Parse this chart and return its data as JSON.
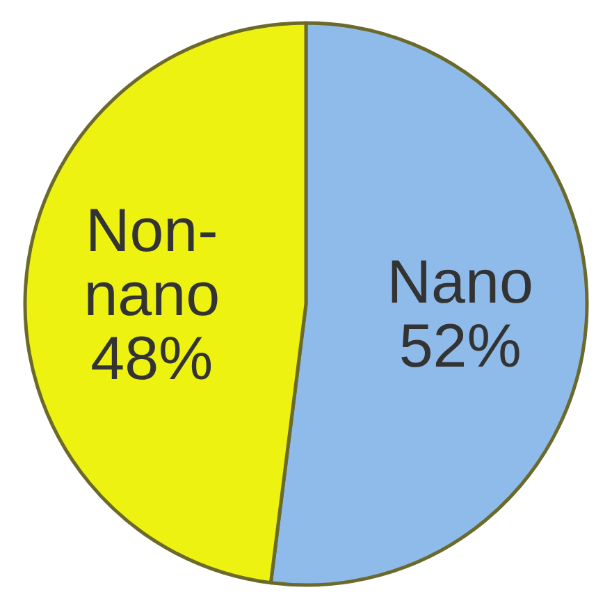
{
  "chart_data": {
    "type": "pie",
    "categories": [
      "Nano",
      "Non-nano"
    ],
    "values": [
      52,
      48
    ],
    "colors": [
      "#8fbbea",
      "#eef211"
    ],
    "value_labels": [
      "52%",
      "48%"
    ]
  }
}
